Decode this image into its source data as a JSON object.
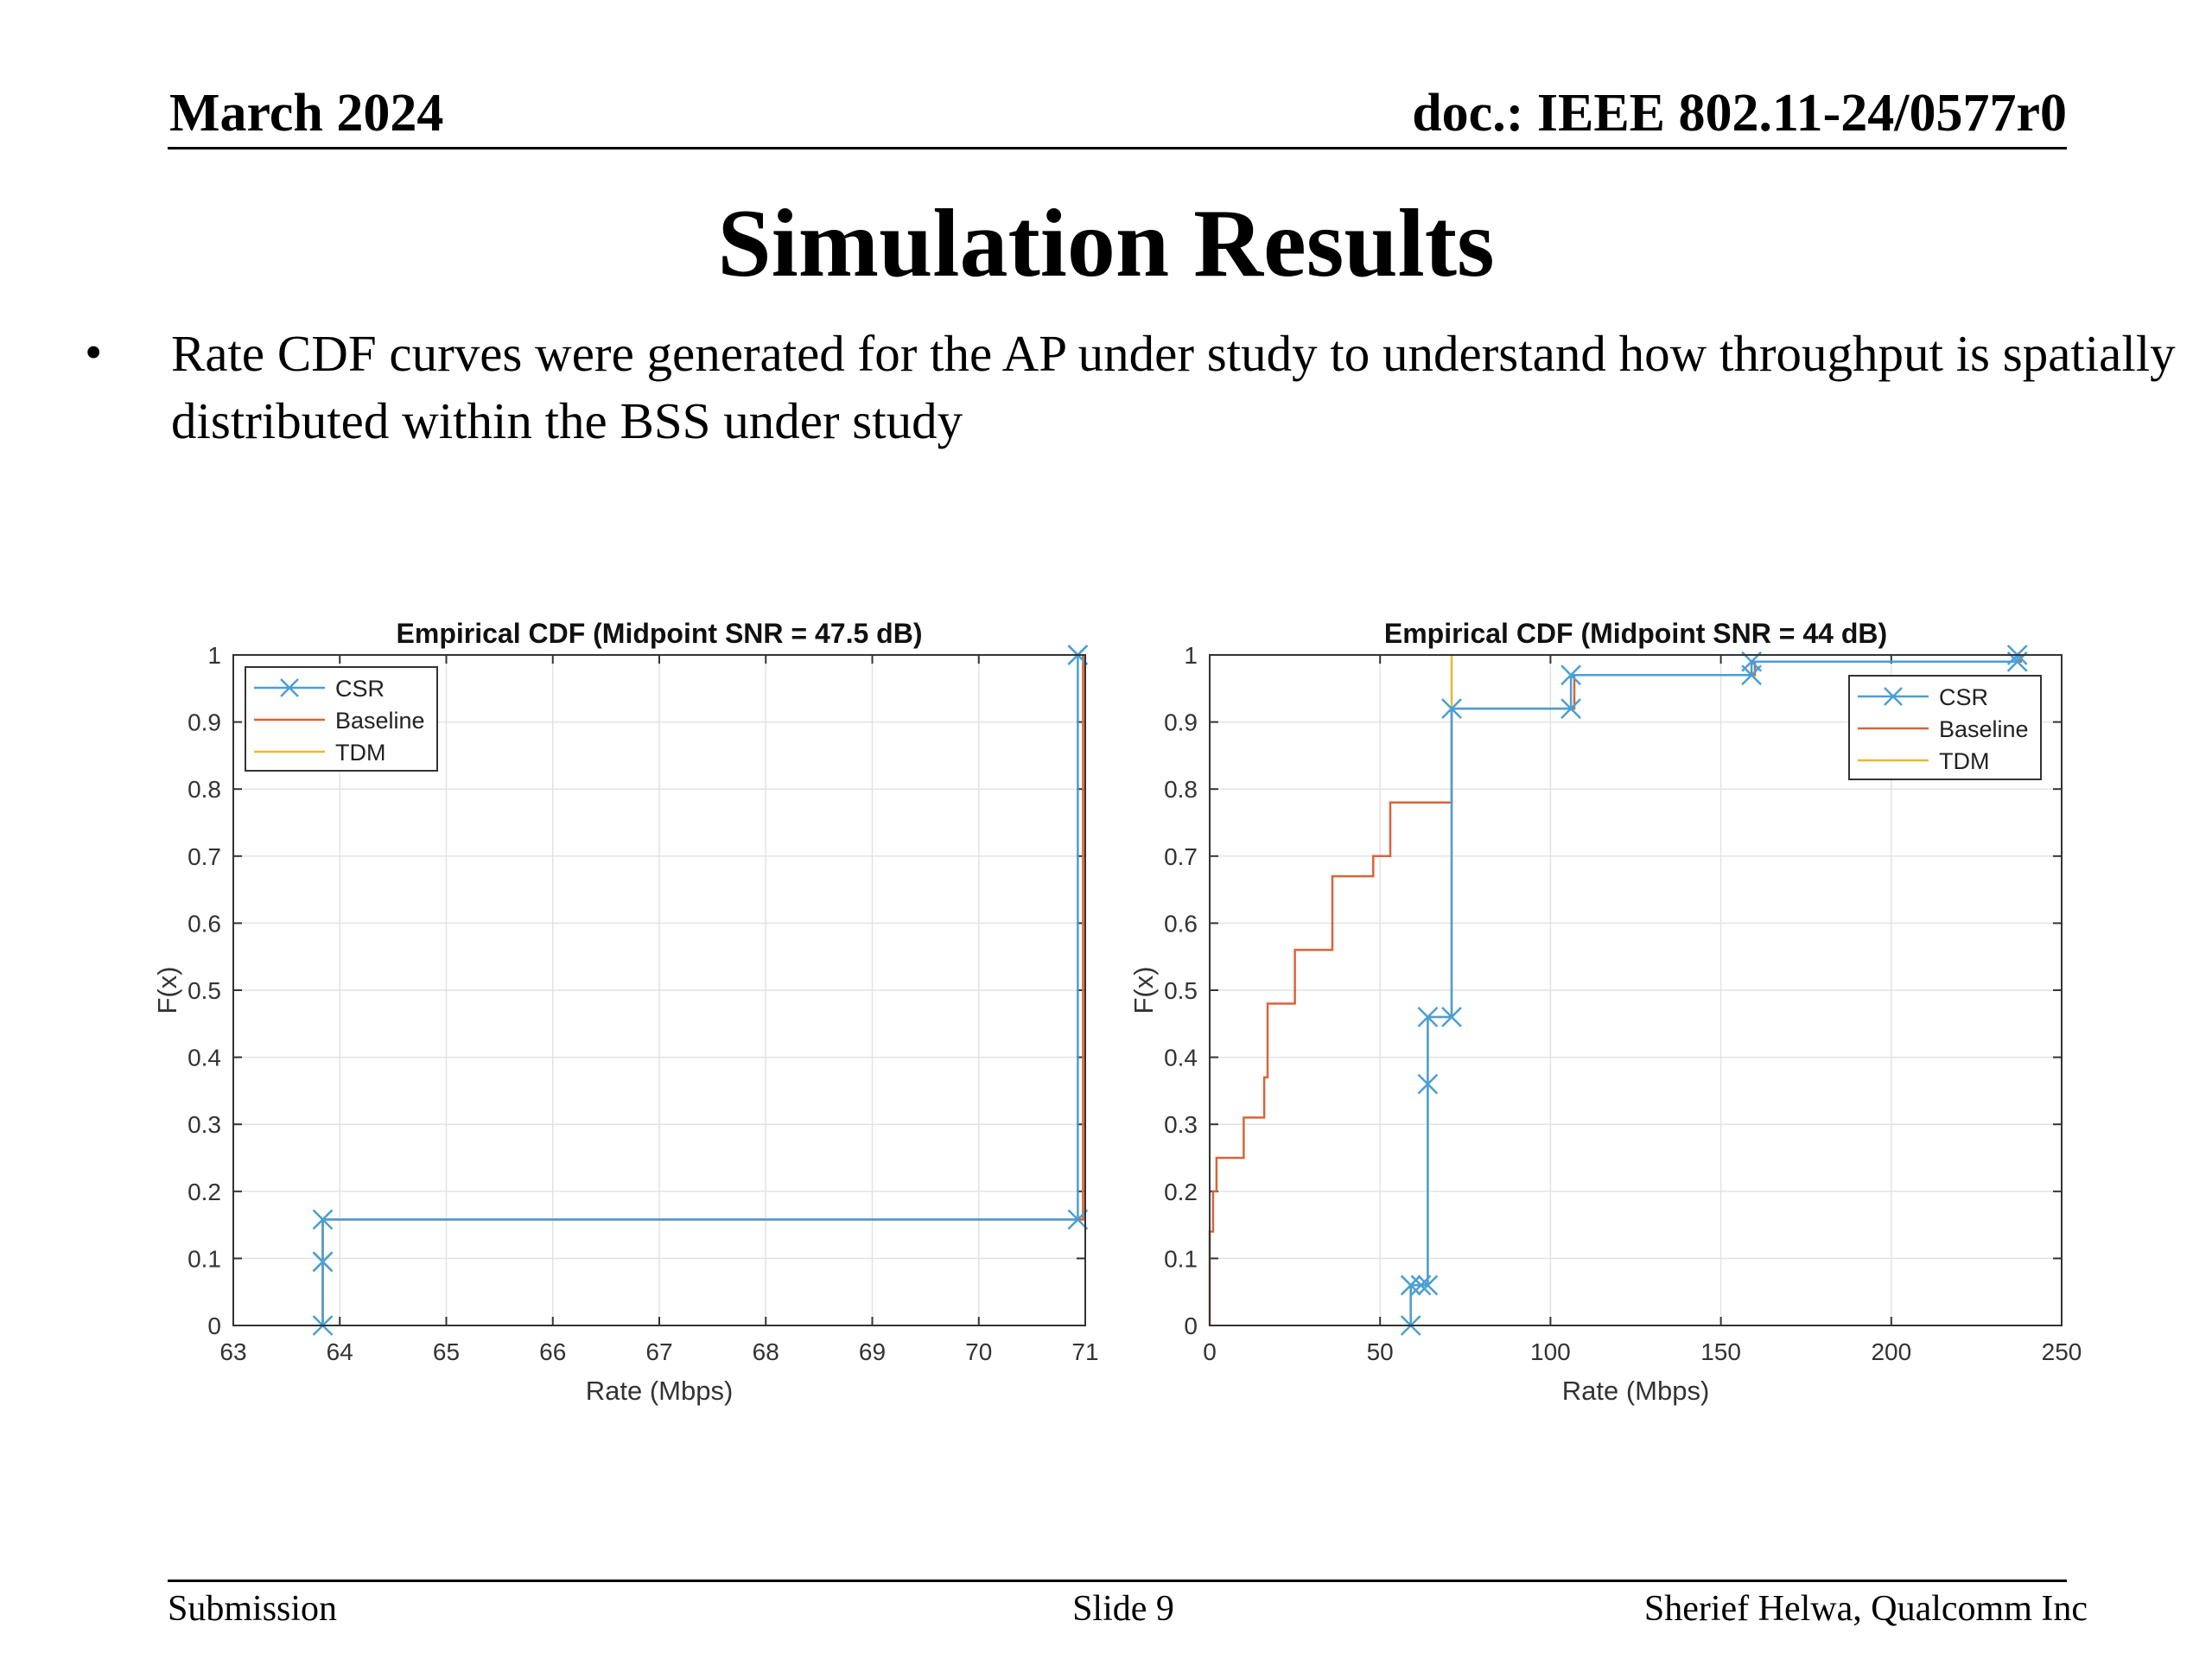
{
  "header": {
    "date": "March 2024",
    "doc": "doc.: IEEE 802.11-24/0577r0"
  },
  "slide_title": "Simulation Results",
  "bullet": "Rate CDF curves were generated for the AP under study to understand how throughput is spatially distributed within the BSS under study",
  "footer": {
    "left": "Submission",
    "center": "Slide 9",
    "right": "Sherief Helwa, Qualcomm Inc"
  },
  "colors": {
    "csr": "#4a9fd4",
    "baseline": "#d9633a",
    "tdm": "#e8b832"
  },
  "chart_data": [
    {
      "type": "line",
      "title": "Empirical CDF (Midpoint SNR = 47.5 dB)",
      "xlabel": "Rate (Mbps)",
      "ylabel": "F(x)",
      "xlim": [
        63,
        71
      ],
      "ylim": [
        0,
        1
      ],
      "xticks": [
        63,
        64,
        65,
        66,
        67,
        68,
        69,
        70,
        71
      ],
      "yticks": [
        0,
        0.1,
        0.2,
        0.3,
        0.4,
        0.5,
        0.6,
        0.7,
        0.8,
        0.9,
        1
      ],
      "grid": true,
      "legend": "top-left",
      "series": [
        {
          "name": "CSR",
          "step": true,
          "markers": true,
          "x": [
            63.84,
            63.84,
            63.84,
            63.84,
            70.93,
            70.93,
            70.93
          ],
          "y": [
            0,
            0.095,
            0.095,
            0.158,
            0.158,
            1,
            1
          ]
        },
        {
          "name": "Baseline",
          "step": true,
          "x": [
            63.84,
            63.84,
            70.98,
            70.98
          ],
          "y": [
            0,
            0.158,
            0.158,
            1
          ]
        },
        {
          "name": "TDM",
          "step": true,
          "x": [
            63.84,
            63.84,
            70.98,
            70.98
          ],
          "y": [
            0,
            0.158,
            0.158,
            1
          ]
        }
      ]
    },
    {
      "type": "line",
      "title": "Empirical CDF (Midpoint SNR = 44 dB)",
      "xlabel": "Rate (Mbps)",
      "ylabel": "F(x)",
      "xlim": [
        0,
        250
      ],
      "ylim": [
        0,
        1
      ],
      "xticks": [
        0,
        50,
        100,
        150,
        200,
        250
      ],
      "yticks": [
        0,
        0.1,
        0.2,
        0.3,
        0.4,
        0.5,
        0.6,
        0.7,
        0.8,
        0.9,
        1
      ],
      "grid": true,
      "legend": "top-right",
      "series": [
        {
          "name": "CSR",
          "step": true,
          "markers": true,
          "x": [
            59,
            59,
            62,
            64,
            64,
            64,
            71,
            71,
            106,
            106,
            159,
            159,
            237,
            237
          ],
          "y": [
            0,
            0.06,
            0.06,
            0.06,
            0.36,
            0.46,
            0.46,
            0.92,
            0.92,
            0.97,
            0.97,
            0.99,
            0.99,
            1
          ]
        },
        {
          "name": "Baseline",
          "step": true,
          "x": [
            0,
            0,
            1,
            1,
            2,
            2,
            10,
            10,
            16,
            16,
            17,
            17,
            25,
            25,
            36,
            36,
            48,
            48,
            53,
            53,
            71,
            71,
            107,
            107,
            160,
            160,
            238,
            238
          ],
          "y": [
            0,
            0.14,
            0.14,
            0.2,
            0.2,
            0.25,
            0.25,
            0.31,
            0.31,
            0.37,
            0.37,
            0.48,
            0.48,
            0.56,
            0.56,
            0.67,
            0.67,
            0.7,
            0.7,
            0.78,
            0.78,
            0.92,
            0.92,
            0.97,
            0.97,
            0.99,
            0.99,
            1
          ]
        },
        {
          "name": "TDM",
          "step": true,
          "x": [
            59,
            59,
            64,
            64,
            71,
            71
          ],
          "y": [
            0,
            0.06,
            0.06,
            0.46,
            0.46,
            1
          ]
        }
      ]
    }
  ]
}
